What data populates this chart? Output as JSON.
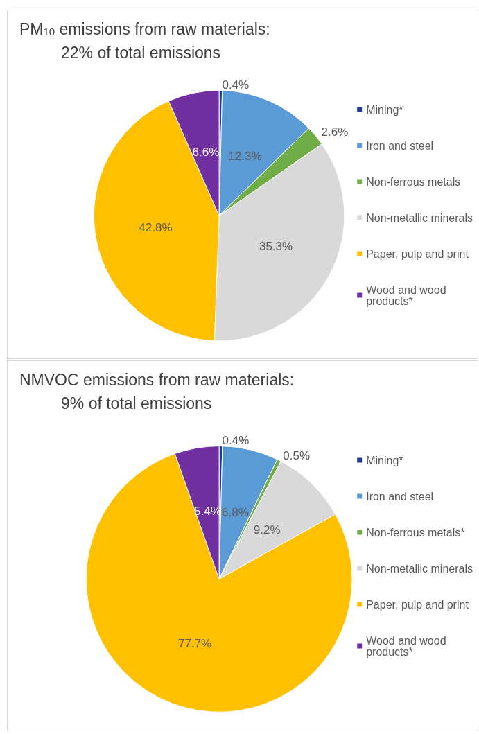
{
  "chart_data": [
    {
      "type": "pie",
      "title": "PM$_{10}$ emissions from raw materials:",
      "subtitle": "22% of total emissions",
      "categories": [
        "Mining*",
        "Iron and steel",
        "Non-ferrous metals",
        "Non-metallic minerals",
        "Paper, pulp and print",
        "Wood and wood products*"
      ],
      "values": [
        0.4,
        12.3,
        2.6,
        35.3,
        42.8,
        6.6
      ],
      "colors": [
        "#1f3a93",
        "#5b9bd5",
        "#70ad47",
        "#d9d9d9",
        "#ffc000",
        "#7030a0"
      ],
      "value_labels": [
        "0.4%",
        "12.3%",
        "2.6%",
        "35.3%",
        "42.8%",
        "6.6%"
      ],
      "legend": "right"
    },
    {
      "type": "pie",
      "title": "NMVOC emissions from raw materials:",
      "subtitle": "9% of total emissions",
      "categories": [
        "Mining*",
        "Iron and steel",
        "Non-ferrous metals*",
        "Non-metallic minerals",
        "Paper, pulp and print",
        "Wood and wood products*"
      ],
      "values": [
        0.4,
        6.8,
        0.5,
        9.2,
        77.7,
        5.4
      ],
      "colors": [
        "#1f3a93",
        "#5b9bd5",
        "#70ad47",
        "#d9d9d9",
        "#ffc000",
        "#7030a0"
      ],
      "value_labels": [
        "0.4%",
        "6.8%",
        "0.5%",
        "9.2%",
        "77.7%",
        "5.4%"
      ],
      "legend": "right"
    }
  ]
}
